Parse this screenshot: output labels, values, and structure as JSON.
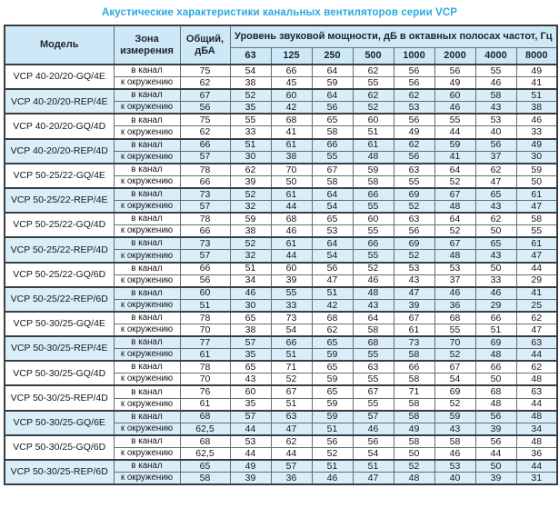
{
  "title": "Акустические характеристики канальных вентиляторов  серии VCP",
  "colors": {
    "accent_title": "#29a9e1",
    "header_bg": "#cde9f7",
    "stripe_bg": "#d9eef9",
    "border": "#6b6c6f",
    "border_heavy": "#3c3d40"
  },
  "table": {
    "col_model": "Модель",
    "col_zone": "Зона измерения",
    "col_total": "Общий, дБА",
    "col_levels": "Уровень звуковой мощности, дБ в октавных полосах частот, Гц",
    "freq_labels": [
      "63",
      "125",
      "250",
      "500",
      "1000",
      "2000",
      "4000",
      "8000"
    ],
    "models": [
      {
        "name": "VCP 40-20/20-GQ/4E",
        "shaded": false,
        "rows": [
          {
            "zone": "в канал",
            "total": "75",
            "levels": [
              "54",
              "66",
              "64",
              "62",
              "56",
              "56",
              "55",
              "49"
            ]
          },
          {
            "zone": "к окружению",
            "total": "62",
            "levels": [
              "38",
              "45",
              "59",
              "55",
              "56",
              "49",
              "46",
              "41"
            ]
          }
        ]
      },
      {
        "name": "VCP 40-20/20-REP/4E",
        "shaded": true,
        "rows": [
          {
            "zone": "в канал",
            "total": "67",
            "levels": [
              "52",
              "60",
              "64",
              "62",
              "62",
              "60",
              "58",
              "51"
            ]
          },
          {
            "zone": "к окружению",
            "total": "56",
            "levels": [
              "35",
              "42",
              "56",
              "52",
              "53",
              "46",
              "43",
              "38"
            ]
          }
        ]
      },
      {
        "name": "VCP 40-20/20-GQ/4D",
        "shaded": false,
        "rows": [
          {
            "zone": "в канал",
            "total": "75",
            "levels": [
              "55",
              "68",
              "65",
              "60",
              "56",
              "55",
              "53",
              "46"
            ]
          },
          {
            "zone": "к окружению",
            "total": "62",
            "levels": [
              "33",
              "41",
              "58",
              "51",
              "49",
              "44",
              "40",
              "33"
            ]
          }
        ]
      },
      {
        "name": "VCP 40-20/20-REP/4D",
        "shaded": true,
        "rows": [
          {
            "zone": "в канал",
            "total": "66",
            "levels": [
              "51",
              "61",
              "66",
              "61",
              "62",
              "59",
              "56",
              "49"
            ]
          },
          {
            "zone": "к окружению",
            "total": "57",
            "levels": [
              "30",
              "38",
              "55",
              "48",
              "56",
              "41",
              "37",
              "30"
            ]
          }
        ]
      },
      {
        "name": "VCP 50-25/22-GQ/4E",
        "shaded": false,
        "rows": [
          {
            "zone": "в канал",
            "total": "78",
            "levels": [
              "62",
              "70",
              "67",
              "59",
              "63",
              "64",
              "62",
              "59"
            ]
          },
          {
            "zone": "к окружению",
            "total": "66",
            "levels": [
              "39",
              "50",
              "58",
              "58",
              "55",
              "52",
              "47",
              "50"
            ]
          }
        ]
      },
      {
        "name": "VCP 50-25/22-REP/4E",
        "shaded": true,
        "rows": [
          {
            "zone": "в канал",
            "total": "73",
            "levels": [
              "52",
              "61",
              "64",
              "66",
              "69",
              "67",
              "65",
              "61"
            ]
          },
          {
            "zone": "к окружению",
            "total": "57",
            "levels": [
              "32",
              "44",
              "54",
              "55",
              "52",
              "48",
              "43",
              "47"
            ]
          }
        ]
      },
      {
        "name": "VCP 50-25/22-GQ/4D",
        "shaded": false,
        "rows": [
          {
            "zone": "в канал",
            "total": "78",
            "levels": [
              "59",
              "68",
              "65",
              "60",
              "63",
              "64",
              "62",
              "58"
            ]
          },
          {
            "zone": "к окружению",
            "total": "66",
            "levels": [
              "38",
              "46",
              "53",
              "55",
              "56",
              "52",
              "50",
              "55"
            ]
          }
        ]
      },
      {
        "name": "VCP 50-25/22-REP/4D",
        "shaded": true,
        "rows": [
          {
            "zone": "в канал",
            "total": "73",
            "levels": [
              "52",
              "61",
              "64",
              "66",
              "69",
              "67",
              "65",
              "61"
            ]
          },
          {
            "zone": "к окружению",
            "total": "57",
            "levels": [
              "32",
              "44",
              "54",
              "55",
              "52",
              "48",
              "43",
              "47"
            ]
          }
        ]
      },
      {
        "name": "VCP 50-25/22-GQ/6D",
        "shaded": false,
        "rows": [
          {
            "zone": "в канал",
            "total": "66",
            "levels": [
              "51",
              "60",
              "56",
              "52",
              "53",
              "53",
              "50",
              "44"
            ]
          },
          {
            "zone": "к окружению",
            "total": "56",
            "levels": [
              "34",
              "39",
              "47",
              "46",
              "43",
              "37",
              "33",
              "29"
            ]
          }
        ]
      },
      {
        "name": "VCP 50-25/22-REP/6D",
        "shaded": true,
        "rows": [
          {
            "zone": "в канал",
            "total": "60",
            "levels": [
              "46",
              "55",
              "51",
              "48",
              "47",
              "46",
              "46",
              "41"
            ]
          },
          {
            "zone": "к окружению",
            "total": "51",
            "levels": [
              "30",
              "33",
              "42",
              "43",
              "39",
              "36",
              "29",
              "25"
            ]
          }
        ]
      },
      {
        "name": "VCP 50-30/25-GQ/4E",
        "shaded": false,
        "rows": [
          {
            "zone": "в канал",
            "total": "78",
            "levels": [
              "65",
              "73",
              "68",
              "64",
              "67",
              "68",
              "66",
              "62"
            ]
          },
          {
            "zone": "к окружению",
            "total": "70",
            "levels": [
              "38",
              "54",
              "62",
              "58",
              "61",
              "55",
              "51",
              "47"
            ]
          }
        ]
      },
      {
        "name": "VCP 50-30/25-REP/4E",
        "shaded": true,
        "rows": [
          {
            "zone": "в канал",
            "total": "77",
            "levels": [
              "57",
              "66",
              "65",
              "68",
              "73",
              "70",
              "69",
              "63"
            ]
          },
          {
            "zone": "к окружению",
            "total": "61",
            "levels": [
              "35",
              "51",
              "59",
              "55",
              "58",
              "52",
              "48",
              "44"
            ]
          }
        ]
      },
      {
        "name": "VCP 50-30/25-GQ/4D",
        "shaded": false,
        "rows": [
          {
            "zone": "в канал",
            "total": "78",
            "levels": [
              "65",
              "71",
              "65",
              "63",
              "66",
              "67",
              "66",
              "62"
            ]
          },
          {
            "zone": "к окружению",
            "total": "70",
            "levels": [
              "43",
              "52",
              "59",
              "55",
              "58",
              "54",
              "50",
              "48"
            ]
          }
        ]
      },
      {
        "name": "VCP 50-30/25-REP/4D",
        "shaded": false,
        "rows": [
          {
            "zone": "в канал",
            "total": "76",
            "levels": [
              "60",
              "67",
              "65",
              "67",
              "71",
              "69",
              "68",
              "63"
            ]
          },
          {
            "zone": "к окружению",
            "total": "61",
            "levels": [
              "35",
              "51",
              "59",
              "55",
              "58",
              "52",
              "48",
              "44"
            ]
          }
        ]
      },
      {
        "name": "VCP 50-30/25-GQ/6E",
        "shaded": true,
        "rows": [
          {
            "zone": "в канал",
            "total": "68",
            "levels": [
              "57",
              "63",
              "59",
              "57",
              "58",
              "59",
              "56",
              "48"
            ]
          },
          {
            "zone": "к окружению",
            "total": "62,5",
            "levels": [
              "44",
              "47",
              "51",
              "46",
              "49",
              "43",
              "39",
              "34"
            ]
          }
        ]
      },
      {
        "name": "VCP 50-30/25-GQ/6D",
        "shaded": false,
        "rows": [
          {
            "zone": "в канал",
            "total": "68",
            "levels": [
              "53",
              "62",
              "56",
              "56",
              "58",
              "58",
              "56",
              "48"
            ]
          },
          {
            "zone": "к окружению",
            "total": "62,5",
            "levels": [
              "44",
              "44",
              "52",
              "54",
              "50",
              "46",
              "44",
              "36"
            ]
          }
        ]
      },
      {
        "name": "VCP 50-30/25-REP/6D",
        "shaded": true,
        "rows": [
          {
            "zone": "в канал",
            "total": "65",
            "levels": [
              "49",
              "57",
              "51",
              "51",
              "52",
              "53",
              "50",
              "44"
            ]
          },
          {
            "zone": "к окружению",
            "total": "58",
            "levels": [
              "39",
              "36",
              "46",
              "47",
              "48",
              "40",
              "39",
              "31"
            ]
          }
        ]
      }
    ]
  }
}
